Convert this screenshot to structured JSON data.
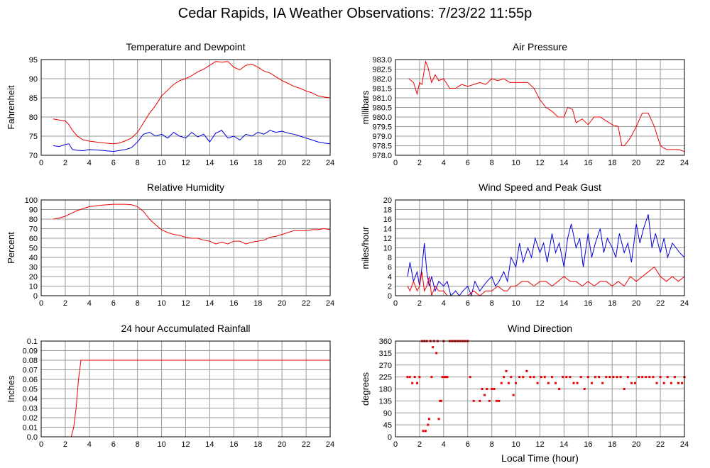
{
  "page": {
    "title": "Cedar Rapids, IA Weather Observations: 7/23/22 11:55p"
  },
  "colors": {
    "red": "#ee0000",
    "blue": "#0000dd",
    "grid": "#999999",
    "plot_bg": "#ffffff"
  },
  "chart_data": [
    {
      "id": "temp",
      "type": "line",
      "title": "Temperature and Dewpoint",
      "ylabel": "Fahrenheit",
      "xlabel": "",
      "xlim": [
        0,
        24
      ],
      "ylim": [
        70,
        95
      ],
      "yticks": [
        70,
        75,
        80,
        85,
        90,
        95
      ],
      "xticks": [
        0,
        2,
        4,
        6,
        8,
        10,
        12,
        14,
        16,
        18,
        20,
        22,
        24
      ],
      "grid": true,
      "series": [
        {
          "color": "red",
          "x": [
            1.0,
            1.5,
            2.0,
            2.3,
            2.6,
            3.0,
            3.5,
            4.0,
            5.0,
            6.0,
            6.5,
            7.0,
            7.5,
            8.0,
            8.5,
            9.0,
            9.5,
            10.0,
            10.5,
            11.0,
            11.5,
            12.0,
            12.5,
            13.0,
            13.5,
            14.0,
            14.5,
            15.0,
            15.5,
            16.0,
            16.5,
            17.0,
            17.5,
            18.0,
            18.5,
            19.0,
            19.5,
            20.0,
            20.5,
            21.0,
            21.5,
            22.0,
            22.5,
            23.0,
            23.5,
            24.0
          ],
          "y": [
            79.5,
            79.2,
            79.0,
            78.0,
            76.5,
            75.0,
            74.0,
            73.7,
            73.3,
            73.0,
            73.2,
            73.8,
            74.5,
            76.0,
            78.5,
            81.0,
            83.0,
            85.5,
            87.0,
            88.5,
            89.5,
            90.0,
            90.8,
            91.8,
            92.5,
            93.5,
            94.5,
            94.3,
            94.5,
            93.0,
            92.3,
            93.5,
            93.8,
            93.0,
            92.0,
            91.5,
            90.5,
            89.5,
            88.8,
            88.0,
            87.5,
            86.8,
            86.3,
            85.5,
            85.2,
            85.0
          ]
        },
        {
          "color": "blue",
          "x": [
            1.0,
            1.5,
            2.0,
            2.3,
            2.6,
            3.0,
            3.5,
            4.0,
            5.0,
            6.0,
            7.0,
            7.5,
            8.0,
            8.5,
            9.0,
            9.5,
            10.0,
            10.5,
            11.0,
            11.5,
            12.0,
            12.5,
            13.0,
            13.5,
            14.0,
            14.5,
            15.0,
            15.5,
            16.0,
            16.5,
            17.0,
            17.5,
            18.0,
            18.5,
            19.0,
            19.5,
            20.0,
            20.5,
            21.0,
            21.5,
            22.0,
            22.5,
            23.0,
            23.5,
            24.0
          ],
          "y": [
            72.5,
            72.3,
            72.8,
            73.0,
            71.5,
            71.3,
            71.2,
            71.5,
            71.3,
            71.0,
            71.5,
            72.0,
            73.5,
            75.5,
            76.0,
            75.0,
            75.5,
            74.5,
            76.0,
            75.0,
            74.5,
            76.0,
            74.8,
            75.5,
            73.5,
            75.8,
            76.5,
            74.5,
            75.0,
            74.0,
            75.5,
            75.0,
            76.0,
            75.5,
            76.5,
            76.0,
            76.3,
            75.8,
            75.5,
            75.0,
            74.5,
            74.0,
            73.5,
            73.2,
            73.0
          ]
        }
      ]
    },
    {
      "id": "press",
      "type": "line",
      "title": "Air Pressure",
      "ylabel": "millibars",
      "xlabel": "",
      "xlim": [
        0,
        24
      ],
      "ylim": [
        978.0,
        983.0
      ],
      "yticks": [
        978.0,
        978.5,
        979.0,
        979.5,
        980.0,
        980.5,
        981.0,
        981.5,
        982.0,
        982.5,
        983.0
      ],
      "xticks": [
        0,
        2,
        4,
        6,
        8,
        10,
        12,
        14,
        16,
        18,
        20,
        22,
        24
      ],
      "grid": true,
      "series": [
        {
          "color": "red",
          "x": [
            1.1,
            1.5,
            1.8,
            2.0,
            2.2,
            2.5,
            2.7,
            3.0,
            3.3,
            3.6,
            4.0,
            4.5,
            5.0,
            5.5,
            6.0,
            6.5,
            7.0,
            7.5,
            8.0,
            8.5,
            9.0,
            9.5,
            10.0,
            10.5,
            11.0,
            11.5,
            12.0,
            12.5,
            13.0,
            13.5,
            14.0,
            14.3,
            14.7,
            15.0,
            15.5,
            16.0,
            16.5,
            17.0,
            17.5,
            18.0,
            18.5,
            18.8,
            19.0,
            19.5,
            20.0,
            20.5,
            21.0,
            21.5,
            22.0,
            22.5,
            23.0,
            23.5,
            24.0
          ],
          "y": [
            982.0,
            981.8,
            981.2,
            981.8,
            981.7,
            982.9,
            982.6,
            981.8,
            982.2,
            981.9,
            982.0,
            981.5,
            981.5,
            981.7,
            981.6,
            981.7,
            981.8,
            981.7,
            982.0,
            981.9,
            982.0,
            981.8,
            981.8,
            981.8,
            981.8,
            981.5,
            980.9,
            980.5,
            980.3,
            980.0,
            980.0,
            980.5,
            980.4,
            979.7,
            979.9,
            979.6,
            980.0,
            980.0,
            979.8,
            979.6,
            979.5,
            978.5,
            978.5,
            978.9,
            979.5,
            980.2,
            980.2,
            979.5,
            978.5,
            978.3,
            978.3,
            978.3,
            978.2
          ]
        }
      ]
    },
    {
      "id": "rh",
      "type": "line",
      "title": "Relative Humidity",
      "ylabel": "Percent",
      "xlabel": "",
      "xlim": [
        0,
        24
      ],
      "ylim": [
        0,
        100
      ],
      "yticks": [
        0,
        10,
        20,
        30,
        40,
        50,
        60,
        70,
        80,
        90,
        100
      ],
      "xticks": [
        0,
        2,
        4,
        6,
        8,
        10,
        12,
        14,
        16,
        18,
        20,
        22,
        24
      ],
      "grid": true,
      "series": [
        {
          "color": "red",
          "x": [
            1.0,
            1.5,
            2.0,
            2.5,
            3.0,
            3.5,
            4.0,
            5.0,
            6.0,
            6.5,
            7.0,
            7.5,
            8.0,
            8.5,
            9.0,
            9.5,
            10.0,
            10.5,
            11.0,
            11.5,
            12.0,
            12.5,
            13.0,
            13.5,
            14.0,
            14.5,
            15.0,
            15.5,
            16.0,
            16.5,
            17.0,
            17.5,
            18.0,
            18.5,
            19.0,
            19.5,
            20.0,
            20.5,
            21.0,
            21.5,
            22.0,
            22.5,
            23.0,
            23.5,
            24.0
          ],
          "y": [
            80,
            81,
            83,
            86,
            89,
            91,
            93,
            94.5,
            95.5,
            95.5,
            95.5,
            95,
            93,
            88,
            80,
            74,
            69,
            66,
            64,
            63,
            61,
            60,
            60,
            58,
            57,
            54,
            56,
            54,
            57,
            57,
            54,
            56,
            57,
            58,
            61,
            62,
            64,
            66,
            68,
            68,
            68,
            69,
            69,
            70,
            69
          ]
        }
      ]
    },
    {
      "id": "wind",
      "type": "line",
      "title": "Wind Speed and Peak Gust",
      "ylabel": "miles/hour",
      "xlabel": "",
      "xlim": [
        0,
        24
      ],
      "ylim": [
        0,
        20
      ],
      "yticks": [
        0,
        2,
        4,
        6,
        8,
        10,
        12,
        14,
        16,
        18,
        20
      ],
      "xticks": [
        0,
        2,
        4,
        6,
        8,
        10,
        12,
        14,
        16,
        18,
        20,
        22,
        24
      ],
      "grid": true,
      "series": [
        {
          "color": "blue",
          "x": [
            1.0,
            1.2,
            1.5,
            1.8,
            2.0,
            2.2,
            2.4,
            2.6,
            2.8,
            3.0,
            3.3,
            3.6,
            4.0,
            4.3,
            4.6,
            5.0,
            5.3,
            5.6,
            6.0,
            6.3,
            6.6,
            7.0,
            7.3,
            7.6,
            8.0,
            8.3,
            8.6,
            9.0,
            9.3,
            9.6,
            10.0,
            10.3,
            10.6,
            11.0,
            11.3,
            11.6,
            12.0,
            12.3,
            12.6,
            13.0,
            13.3,
            13.6,
            14.0,
            14.3,
            14.6,
            15.0,
            15.3,
            15.6,
            16.0,
            16.3,
            16.6,
            17.0,
            17.3,
            17.6,
            18.0,
            18.3,
            18.6,
            19.0,
            19.3,
            19.6,
            20.0,
            20.3,
            20.6,
            21.0,
            21.3,
            21.6,
            22.0,
            22.3,
            22.6,
            23.0,
            23.3,
            23.6,
            24.0
          ],
          "y": [
            4,
            7,
            3,
            5,
            2,
            6,
            11,
            5,
            2,
            4,
            1,
            3,
            2,
            3,
            0,
            1,
            0,
            1,
            2,
            0,
            3,
            1,
            2,
            3,
            4,
            2,
            3,
            5,
            3,
            8,
            6,
            11,
            7,
            10,
            8,
            12,
            9,
            11,
            7,
            13,
            9,
            11,
            6,
            12,
            15,
            10,
            12,
            6,
            13,
            8,
            11,
            14,
            9,
            12,
            10,
            8,
            13,
            9,
            11,
            7,
            15,
            11,
            14,
            17,
            10,
            13,
            9,
            12,
            8,
            11,
            10,
            9,
            8
          ]
        },
        {
          "color": "red",
          "x": [
            1.0,
            1.2,
            1.5,
            1.8,
            2.0,
            2.2,
            2.4,
            2.6,
            2.8,
            3.0,
            3.3,
            3.6,
            4.0,
            4.3,
            4.6,
            5.0,
            5.5,
            6.0,
            6.5,
            7.0,
            7.5,
            8.0,
            8.5,
            9.0,
            9.3,
            9.6,
            10.0,
            10.5,
            11.0,
            11.5,
            12.0,
            12.5,
            13.0,
            13.5,
            14.0,
            14.5,
            15.0,
            15.5,
            16.0,
            16.5,
            17.0,
            17.5,
            18.0,
            18.5,
            19.0,
            19.5,
            20.0,
            20.5,
            21.0,
            21.5,
            22.0,
            22.5,
            23.0,
            23.5,
            24.0
          ],
          "y": [
            2,
            1,
            3,
            1,
            2,
            5,
            1,
            2,
            4,
            0,
            2,
            1,
            1,
            0,
            0,
            0,
            0,
            0,
            1,
            0,
            1,
            1,
            2,
            1,
            1,
            2,
            2,
            3,
            3,
            2,
            3,
            3,
            2,
            3,
            4,
            3,
            3,
            2,
            3,
            2,
            3,
            3,
            2,
            3,
            2,
            4,
            3,
            4,
            5,
            6,
            4,
            3,
            4,
            3,
            4
          ]
        }
      ]
    },
    {
      "id": "rain",
      "type": "line",
      "title": "24 hour Accumulated Rainfall",
      "ylabel": "Inches",
      "xlabel": "",
      "xlim": [
        0,
        24
      ],
      "ylim": [
        0,
        0.1
      ],
      "yticks": [
        0.0,
        0.01,
        0.02,
        0.03,
        0.04,
        0.05,
        0.06,
        0.07,
        0.08,
        0.09,
        0.1
      ],
      "ytick_labels": [
        "0.0",
        "0.01",
        "0.02",
        "0.03",
        "0.04",
        "0.05",
        "0.06",
        "0.07",
        "0.08",
        "0.09",
        "0.1"
      ],
      "xticks": [
        0,
        2,
        4,
        6,
        8,
        10,
        12,
        14,
        16,
        18,
        20,
        22,
        24
      ],
      "grid": true,
      "series": [
        {
          "color": "red",
          "x": [
            1.0,
            2.5,
            2.7,
            2.9,
            3.1,
            3.3,
            24.0
          ],
          "y": [
            0,
            0,
            0.01,
            0.03,
            0.06,
            0.08,
            0.08
          ]
        }
      ]
    },
    {
      "id": "dir",
      "type": "scatter",
      "title": "Wind Direction",
      "ylabel": "degrees",
      "xlabel": "Local Time (hour)",
      "xlim": [
        0,
        24
      ],
      "ylim": [
        0,
        360
      ],
      "yticks": [
        0,
        45,
        90,
        135,
        180,
        225,
        270,
        315,
        360
      ],
      "xticks": [
        0,
        2,
        4,
        6,
        8,
        10,
        12,
        14,
        16,
        18,
        20,
        22,
        24
      ],
      "grid": true,
      "series": [
        {
          "color": "red",
          "x": [
            1.0,
            1.2,
            1.4,
            1.6,
            1.8,
            2.0,
            2.2,
            2.3,
            2.4,
            2.5,
            2.6,
            2.7,
            2.8,
            2.9,
            3.0,
            3.1,
            3.2,
            3.4,
            3.5,
            3.6,
            3.7,
            3.8,
            3.9,
            4.0,
            4.1,
            4.2,
            4.3,
            4.5,
            4.7,
            4.9,
            5.0,
            5.2,
            5.4,
            5.6,
            5.8,
            6.0,
            6.2,
            6.5,
            7.0,
            7.2,
            7.4,
            7.6,
            7.8,
            8.0,
            8.2,
            8.4,
            8.6,
            8.8,
            9.0,
            9.2,
            9.4,
            9.6,
            9.8,
            10.0,
            10.3,
            10.6,
            10.9,
            11.2,
            11.5,
            11.8,
            12.1,
            12.4,
            12.7,
            13.0,
            13.3,
            13.6,
            13.9,
            14.2,
            14.5,
            14.8,
            15.1,
            15.4,
            15.7,
            16.0,
            16.3,
            16.6,
            16.9,
            17.2,
            17.5,
            17.8,
            18.1,
            18.4,
            18.7,
            19.0,
            19.3,
            19.6,
            19.9,
            20.2,
            20.5,
            20.8,
            21.1,
            21.4,
            21.7,
            22.0,
            22.3,
            22.6,
            22.9,
            23.2,
            23.5,
            23.8,
            24.0
          ],
          "y": [
            225,
            225,
            202,
            225,
            202,
            225,
            360,
            22,
            360,
            22,
            360,
            45,
            67,
            360,
            225,
            337,
            360,
            315,
            360,
            67,
            135,
            135,
            225,
            360,
            225,
            225,
            225,
            360,
            360,
            360,
            360,
            360,
            360,
            360,
            360,
            360,
            225,
            135,
            135,
            180,
            157,
            180,
            135,
            180,
            180,
            135,
            135,
            202,
            225,
            247,
            202,
            225,
            157,
            202,
            225,
            225,
            247,
            225,
            225,
            202,
            225,
            225,
            202,
            225,
            202,
            180,
            225,
            225,
            225,
            202,
            202,
            225,
            180,
            225,
            202,
            225,
            225,
            202,
            225,
            225,
            225,
            225,
            225,
            180,
            225,
            202,
            202,
            225,
            225,
            225,
            225,
            225,
            202,
            225,
            202,
            225,
            202,
            225,
            202,
            202,
            225
          ]
        }
      ]
    }
  ]
}
